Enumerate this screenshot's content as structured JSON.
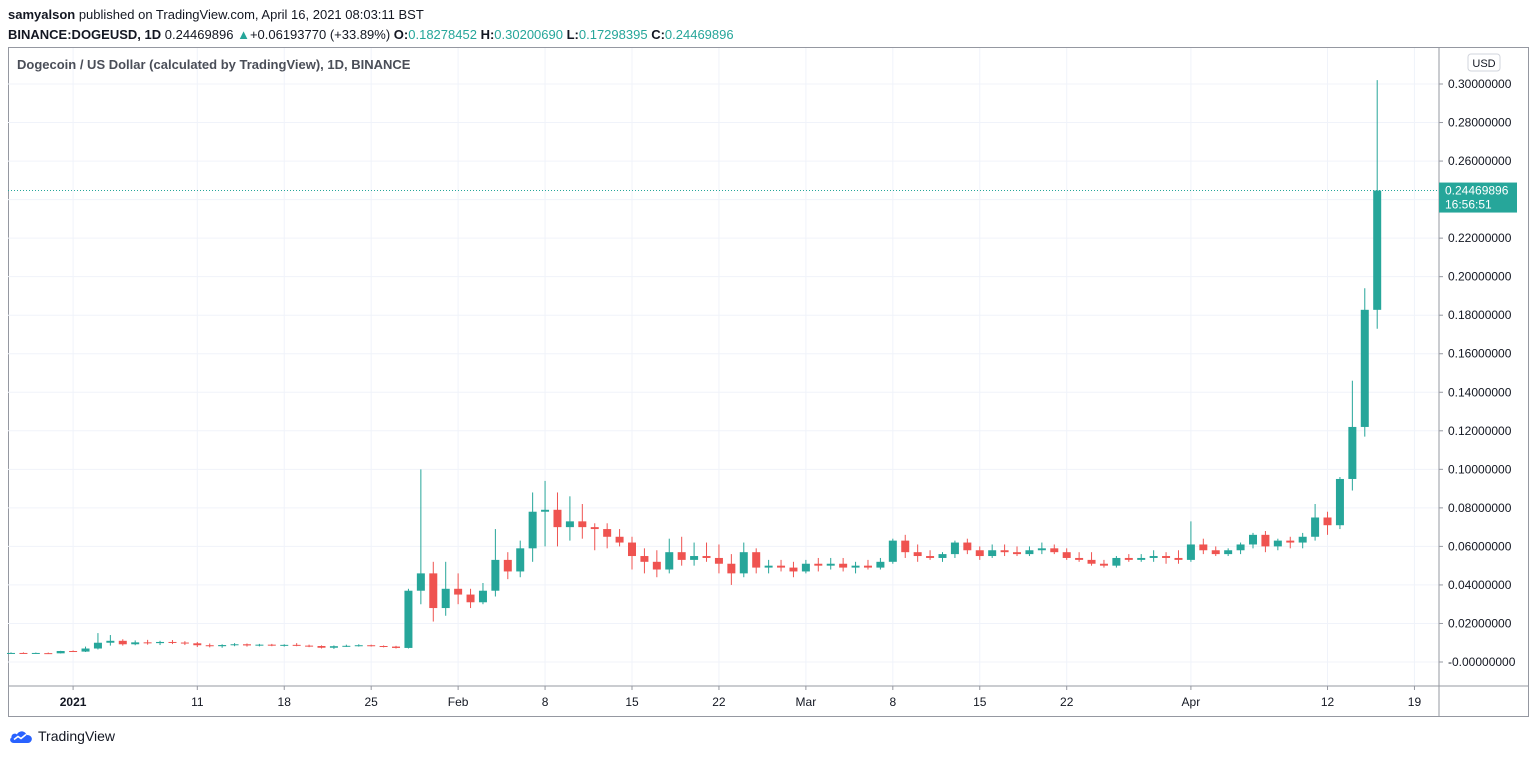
{
  "header": {
    "author": "samyalson",
    "published_text": "published on TradingView.com, April 16, 2021 08:03:11 BST",
    "symbol": "BINANCE:DOGEUSD, 1D",
    "last_price": "0.24469896",
    "change_arrow": "▲",
    "change": "+0.06193770 (+33.89%)",
    "o_label": "O:",
    "o_value": "0.18278452",
    "h_label": "H:",
    "h_value": "0.30200690",
    "l_label": "L:",
    "l_value": "0.17298395",
    "c_label": "C:",
    "c_value": "0.24469896"
  },
  "legend_title": "Dogecoin / US Dollar (calculated by TradingView), 1D, BINANCE",
  "footer": {
    "brand": "TradingView",
    "logo_icon": "tradingview-cloud-icon"
  },
  "colors": {
    "up": "#26a69a",
    "down": "#ef5350",
    "grid": "#f0f3fa",
    "axis": "#9598a1",
    "text": "#131722"
  },
  "chart_data": {
    "type": "candlestick",
    "title": "Dogecoin / US Dollar (calculated by TradingView), 1D, BINANCE",
    "currency_label": "USD",
    "ylim": [
      -0.01,
      0.31
    ],
    "y_ticks": [
      {
        "value": 0.3,
        "label": "0.30000000"
      },
      {
        "value": 0.28,
        "label": "0.28000000"
      },
      {
        "value": 0.26,
        "label": "0.26000000"
      },
      {
        "value": 0.22,
        "label": "0.22000000"
      },
      {
        "value": 0.2,
        "label": "0.20000000"
      },
      {
        "value": 0.18,
        "label": "0.18000000"
      },
      {
        "value": 0.16,
        "label": "0.16000000"
      },
      {
        "value": 0.14,
        "label": "0.14000000"
      },
      {
        "value": 0.12,
        "label": "0.12000000"
      },
      {
        "value": 0.1,
        "label": "0.10000000"
      },
      {
        "value": 0.08,
        "label": "0.08000000"
      },
      {
        "value": 0.06,
        "label": "0.06000000"
      },
      {
        "value": 0.04,
        "label": "0.04000000"
      },
      {
        "value": 0.02,
        "label": "0.02000000"
      },
      {
        "value": 0.0,
        "label": "-0.00000000"
      }
    ],
    "hidden_grid_values": [
      0.24
    ],
    "last_price": {
      "value": 0.24469896,
      "label": "0.24469896",
      "countdown": "16:56:51"
    },
    "x_ticks": [
      {
        "date": "2021-01-01",
        "label": "2021",
        "bold": true
      },
      {
        "date": "2021-01-11",
        "label": "11"
      },
      {
        "date": "2021-01-18",
        "label": "18"
      },
      {
        "date": "2021-01-25",
        "label": "25"
      },
      {
        "date": "2021-02-01",
        "label": "Feb"
      },
      {
        "date": "2021-02-08",
        "label": "8"
      },
      {
        "date": "2021-02-15",
        "label": "15"
      },
      {
        "date": "2021-02-22",
        "label": "22"
      },
      {
        "date": "2021-03-01",
        "label": "Mar"
      },
      {
        "date": "2021-03-08",
        "label": "8"
      },
      {
        "date": "2021-03-15",
        "label": "15"
      },
      {
        "date": "2021-03-22",
        "label": "22"
      },
      {
        "date": "2021-04-01",
        "label": "Apr"
      },
      {
        "date": "2021-04-12",
        "label": "12"
      },
      {
        "date": "2021-04-19",
        "label": "19"
      }
    ],
    "x_range": [
      "2020-12-27",
      "2021-04-24"
    ],
    "grid": true,
    "candles": [
      {
        "date": "2020-12-27",
        "o": 0.0046,
        "h": 0.005,
        "l": 0.0044,
        "c": 0.0047
      },
      {
        "date": "2020-12-28",
        "o": 0.0047,
        "h": 0.005,
        "l": 0.0045,
        "c": 0.0046
      },
      {
        "date": "2020-12-29",
        "o": 0.0046,
        "h": 0.0049,
        "l": 0.0044,
        "c": 0.0047
      },
      {
        "date": "2020-12-30",
        "o": 0.0046,
        "h": 0.0049,
        "l": 0.0044,
        "c": 0.0045
      },
      {
        "date": "2020-12-31",
        "o": 0.0045,
        "h": 0.0058,
        "l": 0.0044,
        "c": 0.0057
      },
      {
        "date": "2021-01-01",
        "o": 0.0057,
        "h": 0.006,
        "l": 0.0052,
        "c": 0.0054
      },
      {
        "date": "2021-01-02",
        "o": 0.0054,
        "h": 0.008,
        "l": 0.0052,
        "c": 0.007
      },
      {
        "date": "2021-01-03",
        "o": 0.007,
        "h": 0.015,
        "l": 0.0065,
        "c": 0.01
      },
      {
        "date": "2021-01-04",
        "o": 0.01,
        "h": 0.014,
        "l": 0.0085,
        "c": 0.011
      },
      {
        "date": "2021-01-05",
        "o": 0.011,
        "h": 0.0118,
        "l": 0.0085,
        "c": 0.0092
      },
      {
        "date": "2021-01-06",
        "o": 0.0092,
        "h": 0.0112,
        "l": 0.0087,
        "c": 0.0102
      },
      {
        "date": "2021-01-07",
        "o": 0.0102,
        "h": 0.0115,
        "l": 0.009,
        "c": 0.0098
      },
      {
        "date": "2021-01-08",
        "o": 0.0098,
        "h": 0.011,
        "l": 0.0088,
        "c": 0.0104
      },
      {
        "date": "2021-01-09",
        "o": 0.0104,
        "h": 0.0114,
        "l": 0.0093,
        "c": 0.0101
      },
      {
        "date": "2021-01-10",
        "o": 0.0101,
        "h": 0.0108,
        "l": 0.0088,
        "c": 0.0097
      },
      {
        "date": "2021-01-11",
        "o": 0.0097,
        "h": 0.0104,
        "l": 0.0078,
        "c": 0.0087
      },
      {
        "date": "2021-01-12",
        "o": 0.0087,
        "h": 0.0096,
        "l": 0.0076,
        "c": 0.0082
      },
      {
        "date": "2021-01-13",
        "o": 0.0082,
        "h": 0.0092,
        "l": 0.0074,
        "c": 0.0088
      },
      {
        "date": "2021-01-14",
        "o": 0.0088,
        "h": 0.0098,
        "l": 0.0082,
        "c": 0.0092
      },
      {
        "date": "2021-01-15",
        "o": 0.0092,
        "h": 0.0096,
        "l": 0.008,
        "c": 0.0086
      },
      {
        "date": "2021-01-16",
        "o": 0.0086,
        "h": 0.0094,
        "l": 0.0081,
        "c": 0.009
      },
      {
        "date": "2021-01-17",
        "o": 0.009,
        "h": 0.0094,
        "l": 0.0082,
        "c": 0.0086
      },
      {
        "date": "2021-01-18",
        "o": 0.0086,
        "h": 0.0092,
        "l": 0.008,
        "c": 0.0089
      },
      {
        "date": "2021-01-19",
        "o": 0.0089,
        "h": 0.0098,
        "l": 0.0082,
        "c": 0.0085
      },
      {
        "date": "2021-01-20",
        "o": 0.0085,
        "h": 0.009,
        "l": 0.0077,
        "c": 0.0083
      },
      {
        "date": "2021-01-21",
        "o": 0.0083,
        "h": 0.0086,
        "l": 0.007,
        "c": 0.0074
      },
      {
        "date": "2021-01-22",
        "o": 0.0074,
        "h": 0.0086,
        "l": 0.0068,
        "c": 0.0082
      },
      {
        "date": "2021-01-23",
        "o": 0.0082,
        "h": 0.009,
        "l": 0.0078,
        "c": 0.0084
      },
      {
        "date": "2021-01-24",
        "o": 0.0084,
        "h": 0.0092,
        "l": 0.008,
        "c": 0.0087
      },
      {
        "date": "2021-01-25",
        "o": 0.0087,
        "h": 0.009,
        "l": 0.008,
        "c": 0.0083
      },
      {
        "date": "2021-01-26",
        "o": 0.0083,
        "h": 0.0086,
        "l": 0.0076,
        "c": 0.008
      },
      {
        "date": "2021-01-27",
        "o": 0.008,
        "h": 0.0084,
        "l": 0.007,
        "c": 0.0073
      },
      {
        "date": "2021-01-28",
        "o": 0.0073,
        "h": 0.038,
        "l": 0.007,
        "c": 0.037
      },
      {
        "date": "2021-01-29",
        "o": 0.037,
        "h": 0.1,
        "l": 0.03,
        "c": 0.046
      },
      {
        "date": "2021-01-30",
        "o": 0.046,
        "h": 0.052,
        "l": 0.021,
        "c": 0.028
      },
      {
        "date": "2021-01-31",
        "o": 0.028,
        "h": 0.052,
        "l": 0.024,
        "c": 0.038
      },
      {
        "date": "2021-02-01",
        "o": 0.038,
        "h": 0.046,
        "l": 0.03,
        "c": 0.035
      },
      {
        "date": "2021-02-02",
        "o": 0.035,
        "h": 0.038,
        "l": 0.028,
        "c": 0.031
      },
      {
        "date": "2021-02-03",
        "o": 0.031,
        "h": 0.041,
        "l": 0.03,
        "c": 0.037
      },
      {
        "date": "2021-02-04",
        "o": 0.037,
        "h": 0.069,
        "l": 0.034,
        "c": 0.053
      },
      {
        "date": "2021-02-05",
        "o": 0.053,
        "h": 0.057,
        "l": 0.043,
        "c": 0.047
      },
      {
        "date": "2021-02-06",
        "o": 0.047,
        "h": 0.063,
        "l": 0.044,
        "c": 0.059
      },
      {
        "date": "2021-02-07",
        "o": 0.059,
        "h": 0.088,
        "l": 0.052,
        "c": 0.078
      },
      {
        "date": "2021-02-08",
        "o": 0.078,
        "h": 0.094,
        "l": 0.06,
        "c": 0.079
      },
      {
        "date": "2021-02-09",
        "o": 0.079,
        "h": 0.088,
        "l": 0.06,
        "c": 0.07
      },
      {
        "date": "2021-02-10",
        "o": 0.07,
        "h": 0.086,
        "l": 0.063,
        "c": 0.073
      },
      {
        "date": "2021-02-11",
        "o": 0.073,
        "h": 0.082,
        "l": 0.064,
        "c": 0.07
      },
      {
        "date": "2021-02-12",
        "o": 0.07,
        "h": 0.072,
        "l": 0.058,
        "c": 0.069
      },
      {
        "date": "2021-02-13",
        "o": 0.069,
        "h": 0.072,
        "l": 0.059,
        "c": 0.065
      },
      {
        "date": "2021-02-14",
        "o": 0.065,
        "h": 0.069,
        "l": 0.06,
        "c": 0.062
      },
      {
        "date": "2021-02-15",
        "o": 0.062,
        "h": 0.065,
        "l": 0.048,
        "c": 0.055
      },
      {
        "date": "2021-02-16",
        "o": 0.055,
        "h": 0.059,
        "l": 0.046,
        "c": 0.052
      },
      {
        "date": "2021-02-17",
        "o": 0.052,
        "h": 0.058,
        "l": 0.044,
        "c": 0.048
      },
      {
        "date": "2021-02-18",
        "o": 0.048,
        "h": 0.064,
        "l": 0.046,
        "c": 0.057
      },
      {
        "date": "2021-02-19",
        "o": 0.057,
        "h": 0.065,
        "l": 0.05,
        "c": 0.053
      },
      {
        "date": "2021-02-20",
        "o": 0.053,
        "h": 0.062,
        "l": 0.05,
        "c": 0.055
      },
      {
        "date": "2021-02-21",
        "o": 0.055,
        "h": 0.062,
        "l": 0.052,
        "c": 0.054
      },
      {
        "date": "2021-02-22",
        "o": 0.054,
        "h": 0.061,
        "l": 0.046,
        "c": 0.051
      },
      {
        "date": "2021-02-23",
        "o": 0.051,
        "h": 0.056,
        "l": 0.04,
        "c": 0.046
      },
      {
        "date": "2021-02-24",
        "o": 0.046,
        "h": 0.062,
        "l": 0.044,
        "c": 0.057
      },
      {
        "date": "2021-02-25",
        "o": 0.057,
        "h": 0.059,
        "l": 0.046,
        "c": 0.049
      },
      {
        "date": "2021-02-26",
        "o": 0.049,
        "h": 0.053,
        "l": 0.046,
        "c": 0.05
      },
      {
        "date": "2021-02-27",
        "o": 0.05,
        "h": 0.053,
        "l": 0.047,
        "c": 0.049
      },
      {
        "date": "2021-02-28",
        "o": 0.049,
        "h": 0.052,
        "l": 0.044,
        "c": 0.047
      },
      {
        "date": "2021-03-01",
        "o": 0.047,
        "h": 0.053,
        "l": 0.046,
        "c": 0.051
      },
      {
        "date": "2021-03-02",
        "o": 0.051,
        "h": 0.054,
        "l": 0.047,
        "c": 0.05
      },
      {
        "date": "2021-03-03",
        "o": 0.05,
        "h": 0.054,
        "l": 0.048,
        "c": 0.051
      },
      {
        "date": "2021-03-04",
        "o": 0.051,
        "h": 0.054,
        "l": 0.047,
        "c": 0.049
      },
      {
        "date": "2021-03-05",
        "o": 0.049,
        "h": 0.052,
        "l": 0.046,
        "c": 0.05
      },
      {
        "date": "2021-03-06",
        "o": 0.05,
        "h": 0.053,
        "l": 0.048,
        "c": 0.049
      },
      {
        "date": "2021-03-07",
        "o": 0.049,
        "h": 0.054,
        "l": 0.048,
        "c": 0.052
      },
      {
        "date": "2021-03-08",
        "o": 0.052,
        "h": 0.064,
        "l": 0.051,
        "c": 0.063
      },
      {
        "date": "2021-03-09",
        "o": 0.063,
        "h": 0.066,
        "l": 0.054,
        "c": 0.057
      },
      {
        "date": "2021-03-10",
        "o": 0.057,
        "h": 0.061,
        "l": 0.052,
        "c": 0.055
      },
      {
        "date": "2021-03-11",
        "o": 0.055,
        "h": 0.058,
        "l": 0.053,
        "c": 0.054
      },
      {
        "date": "2021-03-12",
        "o": 0.054,
        "h": 0.057,
        "l": 0.052,
        "c": 0.056
      },
      {
        "date": "2021-03-13",
        "o": 0.056,
        "h": 0.063,
        "l": 0.054,
        "c": 0.062
      },
      {
        "date": "2021-03-14",
        "o": 0.062,
        "h": 0.064,
        "l": 0.056,
        "c": 0.058
      },
      {
        "date": "2021-03-15",
        "o": 0.058,
        "h": 0.06,
        "l": 0.053,
        "c": 0.055
      },
      {
        "date": "2021-03-16",
        "o": 0.055,
        "h": 0.061,
        "l": 0.054,
        "c": 0.058
      },
      {
        "date": "2021-03-17",
        "o": 0.058,
        "h": 0.061,
        "l": 0.055,
        "c": 0.057
      },
      {
        "date": "2021-03-18",
        "o": 0.057,
        "h": 0.06,
        "l": 0.055,
        "c": 0.056
      },
      {
        "date": "2021-03-19",
        "o": 0.056,
        "h": 0.06,
        "l": 0.055,
        "c": 0.058
      },
      {
        "date": "2021-03-20",
        "o": 0.058,
        "h": 0.062,
        "l": 0.056,
        "c": 0.059
      },
      {
        "date": "2021-03-21",
        "o": 0.059,
        "h": 0.061,
        "l": 0.056,
        "c": 0.057
      },
      {
        "date": "2021-03-22",
        "o": 0.057,
        "h": 0.059,
        "l": 0.053,
        "c": 0.054
      },
      {
        "date": "2021-03-23",
        "o": 0.054,
        "h": 0.057,
        "l": 0.052,
        "c": 0.053
      },
      {
        "date": "2021-03-24",
        "o": 0.053,
        "h": 0.057,
        "l": 0.05,
        "c": 0.051
      },
      {
        "date": "2021-03-25",
        "o": 0.051,
        "h": 0.053,
        "l": 0.049,
        "c": 0.05
      },
      {
        "date": "2021-03-26",
        "o": 0.05,
        "h": 0.055,
        "l": 0.049,
        "c": 0.054
      },
      {
        "date": "2021-03-27",
        "o": 0.054,
        "h": 0.056,
        "l": 0.052,
        "c": 0.053
      },
      {
        "date": "2021-03-28",
        "o": 0.053,
        "h": 0.056,
        "l": 0.052,
        "c": 0.054
      },
      {
        "date": "2021-03-29",
        "o": 0.054,
        "h": 0.058,
        "l": 0.052,
        "c": 0.055
      },
      {
        "date": "2021-03-30",
        "o": 0.055,
        "h": 0.057,
        "l": 0.051,
        "c": 0.054
      },
      {
        "date": "2021-03-31",
        "o": 0.054,
        "h": 0.058,
        "l": 0.051,
        "c": 0.053
      },
      {
        "date": "2021-04-01",
        "o": 0.053,
        "h": 0.073,
        "l": 0.052,
        "c": 0.061
      },
      {
        "date": "2021-04-02",
        "o": 0.061,
        "h": 0.064,
        "l": 0.056,
        "c": 0.058
      },
      {
        "date": "2021-04-03",
        "o": 0.058,
        "h": 0.06,
        "l": 0.055,
        "c": 0.056
      },
      {
        "date": "2021-04-04",
        "o": 0.056,
        "h": 0.059,
        "l": 0.055,
        "c": 0.058
      },
      {
        "date": "2021-04-05",
        "o": 0.058,
        "h": 0.062,
        "l": 0.056,
        "c": 0.061
      },
      {
        "date": "2021-04-06",
        "o": 0.061,
        "h": 0.067,
        "l": 0.059,
        "c": 0.066
      },
      {
        "date": "2021-04-07",
        "o": 0.066,
        "h": 0.068,
        "l": 0.057,
        "c": 0.06
      },
      {
        "date": "2021-04-08",
        "o": 0.06,
        "h": 0.064,
        "l": 0.058,
        "c": 0.063
      },
      {
        "date": "2021-04-09",
        "o": 0.063,
        "h": 0.065,
        "l": 0.059,
        "c": 0.062
      },
      {
        "date": "2021-04-10",
        "o": 0.062,
        "h": 0.067,
        "l": 0.059,
        "c": 0.065
      },
      {
        "date": "2021-04-11",
        "o": 0.065,
        "h": 0.082,
        "l": 0.063,
        "c": 0.075
      },
      {
        "date": "2021-04-12",
        "o": 0.075,
        "h": 0.078,
        "l": 0.066,
        "c": 0.071
      },
      {
        "date": "2021-04-13",
        "o": 0.071,
        "h": 0.096,
        "l": 0.069,
        "c": 0.095
      },
      {
        "date": "2021-04-14",
        "o": 0.095,
        "h": 0.146,
        "l": 0.089,
        "c": 0.122
      },
      {
        "date": "2021-04-15",
        "o": 0.122,
        "h": 0.194,
        "l": 0.117,
        "c": 0.1828
      },
      {
        "date": "2021-04-16",
        "o": 0.18278452,
        "h": 0.3020069,
        "l": 0.17298395,
        "c": 0.24469896
      }
    ]
  }
}
